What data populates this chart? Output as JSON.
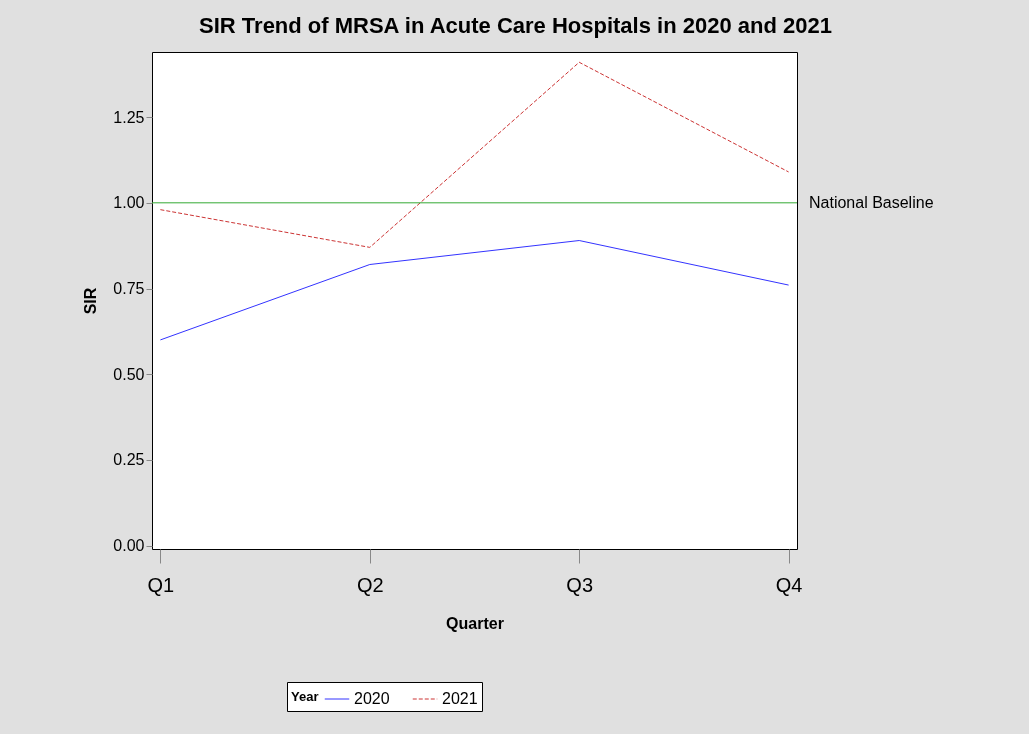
{
  "chart_data": {
    "type": "line",
    "title": "SIR Trend of MRSA in Acute Care Hospitals in 2020 and 2021",
    "xlabel": "Quarter",
    "ylabel": "SIR",
    "legend_title": "Year",
    "categories": [
      "Q1",
      "Q2",
      "Q3",
      "Q4"
    ],
    "series": [
      {
        "name": "2020",
        "color": "#3333ff",
        "values": [
          0.6,
          0.82,
          0.89,
          0.76
        ],
        "line_style": "solid"
      },
      {
        "name": "2021",
        "color": "#cc3333",
        "values": [
          0.98,
          0.87,
          1.41,
          1.09
        ],
        "line_style": "dashed"
      }
    ],
    "ylim": [
      -0.01,
      1.44
    ],
    "yticks": [
      {
        "value": 0,
        "label": "0.00"
      },
      0.25,
      {
        "value": 0.5,
        "label": "0.50"
      },
      0.75,
      {
        "value": 1,
        "label": "1.00"
      },
      1.25
    ],
    "ref_lines": [
      {
        "axis": "y",
        "value": 1.0,
        "label": "National Baseline",
        "color": "#33aa33",
        "line_style": "solid"
      }
    ],
    "grid": false,
    "legend": "bottom",
    "marker": "none"
  }
}
